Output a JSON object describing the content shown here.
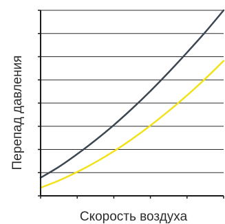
{
  "chart_data": {
    "type": "line",
    "title": "",
    "xlabel": "Скорость воздуха",
    "ylabel": "Перепад давления",
    "xlim": [
      0,
      10
    ],
    "ylim": [
      0,
      8
    ],
    "grid": "horizontal",
    "x_ticks": [
      0,
      2,
      4,
      6,
      8,
      10
    ],
    "y_ticks": [
      0,
      1,
      2,
      3,
      4,
      5,
      6,
      7,
      8
    ],
    "series": [
      {
        "color": "#3c4650",
        "x": [
          0,
          1,
          2,
          3,
          4,
          5,
          6,
          7,
          8,
          9,
          10
        ],
        "y": [
          0.78,
          1.25,
          1.8,
          2.4,
          3.05,
          3.76,
          4.52,
          5.33,
          6.18,
          7.06,
          8.0
        ]
      },
      {
        "color": "#f2e21c",
        "x": [
          0,
          1,
          2,
          3,
          4,
          5,
          6,
          7,
          8,
          9,
          10
        ],
        "y": [
          0.35,
          0.66,
          1.03,
          1.45,
          1.92,
          2.45,
          3.03,
          3.66,
          4.33,
          5.05,
          5.82
        ]
      }
    ]
  }
}
